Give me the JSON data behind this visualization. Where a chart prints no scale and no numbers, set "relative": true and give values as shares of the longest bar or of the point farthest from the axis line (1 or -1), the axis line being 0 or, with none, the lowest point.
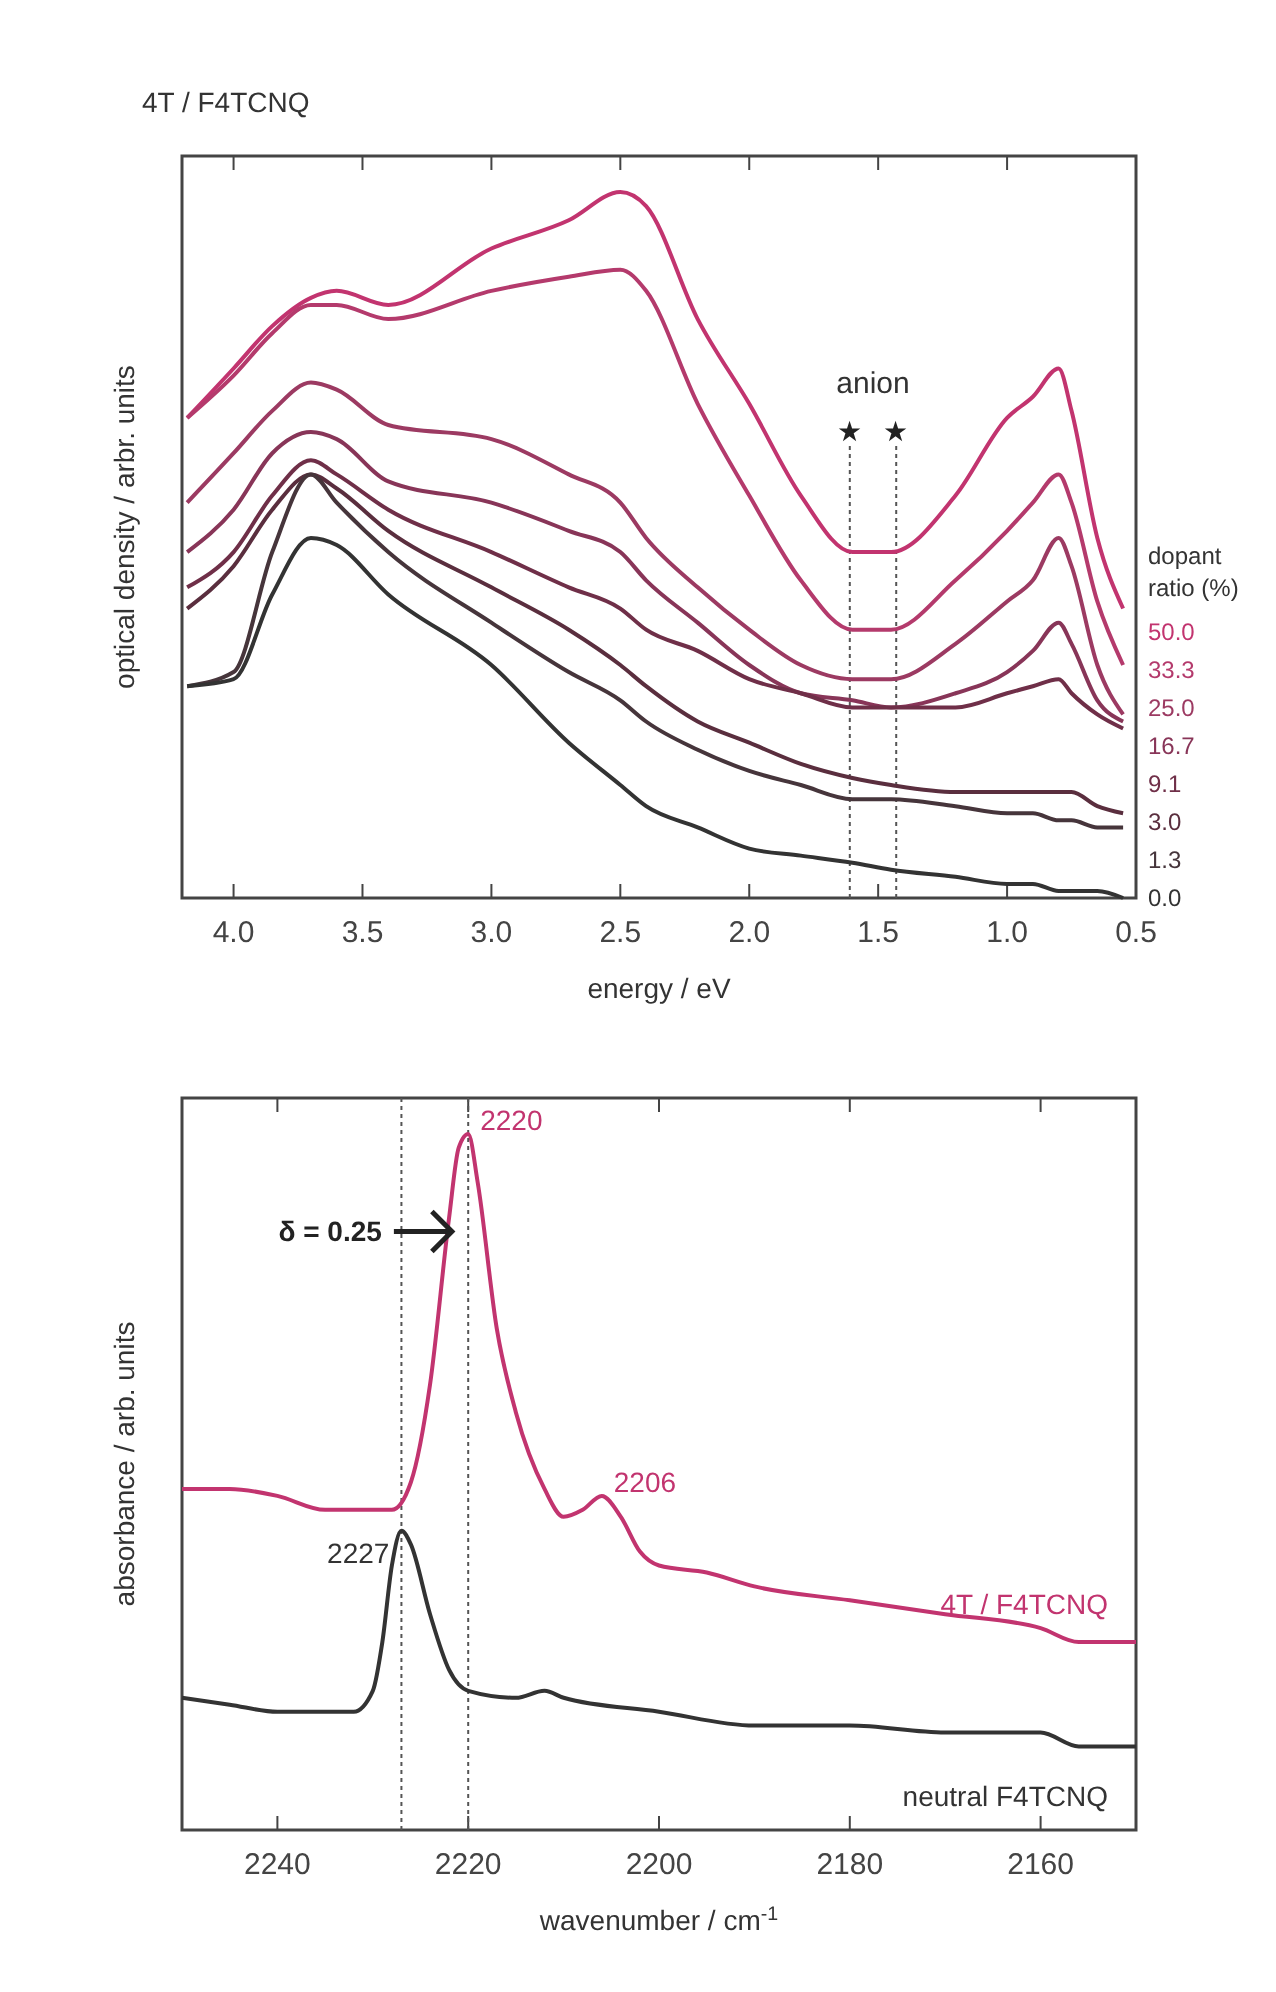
{
  "chart_data": [
    {
      "type": "line",
      "title": "4T / F4TCNQ",
      "xlabel": "energy / eV",
      "ylabel": "optical density / arbr. units",
      "legend_title": "dopant ratio (%)",
      "legend": "right",
      "relative": true,
      "x": [
        4.18,
        4.0,
        3.85,
        3.7,
        3.6,
        3.4,
        3.0,
        2.7,
        2.5,
        2.4,
        2.2,
        2.0,
        1.8,
        1.6,
        1.45,
        1.2,
        1.0,
        0.9,
        0.8,
        0.75,
        0.65,
        0.55
      ],
      "xlim": [
        4.2,
        0.5
      ],
      "xticks": [
        {
          "value": 4,
          "label": "4.0"
        },
        {
          "value": 3.5,
          "label": "3.5"
        },
        {
          "value": 3,
          "label": "3.0"
        },
        {
          "value": 2.5,
          "label": "2.5"
        },
        {
          "value": 2,
          "label": "2.0"
        },
        {
          "value": 1.5,
          "label": "1.5"
        },
        {
          "value": 1,
          "label": "1.0"
        },
        {
          "value": 0.5,
          "label": "0.5"
        }
      ],
      "series": [
        {
          "name": "50.0",
          "color": "#c2346f",
          "values": [
            0.68,
            0.75,
            0.81,
            0.85,
            0.86,
            0.84,
            0.92,
            0.96,
            1.0,
            0.98,
            0.82,
            0.7,
            0.57,
            0.49,
            0.49,
            0.57,
            0.68,
            0.71,
            0.75,
            0.69,
            0.51,
            0.41
          ]
        },
        {
          "name": "33.3",
          "color": "#b43a6c",
          "values": [
            0.68,
            0.74,
            0.8,
            0.84,
            0.84,
            0.82,
            0.86,
            0.88,
            0.89,
            0.86,
            0.7,
            0.57,
            0.45,
            0.38,
            0.38,
            0.45,
            0.52,
            0.56,
            0.6,
            0.56,
            0.42,
            0.33
          ]
        },
        {
          "name": "25.0",
          "color": "#9c3a62",
          "values": [
            0.56,
            0.63,
            0.69,
            0.73,
            0.72,
            0.67,
            0.65,
            0.6,
            0.56,
            0.51,
            0.44,
            0.38,
            0.33,
            0.31,
            0.31,
            0.36,
            0.42,
            0.45,
            0.51,
            0.47,
            0.33,
            0.26
          ]
        },
        {
          "name": "16.7",
          "color": "#883558",
          "values": [
            0.49,
            0.55,
            0.63,
            0.66,
            0.65,
            0.59,
            0.56,
            0.52,
            0.49,
            0.45,
            0.39,
            0.33,
            0.29,
            0.28,
            0.27,
            0.29,
            0.32,
            0.35,
            0.39,
            0.36,
            0.28,
            0.25
          ]
        },
        {
          "name": "9.1",
          "color": "#6f2f48",
          "values": [
            0.44,
            0.49,
            0.57,
            0.62,
            0.6,
            0.55,
            0.49,
            0.44,
            0.41,
            0.38,
            0.35,
            0.31,
            0.29,
            0.27,
            0.27,
            0.27,
            0.29,
            0.3,
            0.31,
            0.29,
            0.26,
            0.24
          ]
        },
        {
          "name": "3.0",
          "color": "#5a2e3e",
          "values": [
            0.41,
            0.47,
            0.55,
            0.6,
            0.58,
            0.52,
            0.44,
            0.38,
            0.33,
            0.3,
            0.25,
            0.22,
            0.19,
            0.17,
            0.16,
            0.15,
            0.15,
            0.15,
            0.15,
            0.15,
            0.13,
            0.12
          ]
        },
        {
          "name": "1.3",
          "color": "#46353b",
          "values": [
            0.3,
            0.32,
            0.49,
            0.6,
            0.56,
            0.49,
            0.39,
            0.32,
            0.28,
            0.25,
            0.21,
            0.18,
            0.16,
            0.14,
            0.14,
            0.13,
            0.12,
            0.12,
            0.11,
            0.11,
            0.1,
            0.1
          ]
        },
        {
          "name": "0.0",
          "color": "#333333",
          "values": [
            0.3,
            0.31,
            0.43,
            0.51,
            0.5,
            0.43,
            0.33,
            0.22,
            0.16,
            0.13,
            0.1,
            0.07,
            0.06,
            0.05,
            0.04,
            0.03,
            0.02,
            0.02,
            0.01,
            0.01,
            0.01,
            0.0
          ]
        }
      ],
      "ref_lines": [
        {
          "axis": "x",
          "value": 1.61,
          "label": "★",
          "line_style": "dotted"
        },
        {
          "axis": "x",
          "value": 1.43,
          "label": "★",
          "line_style": "dotted"
        }
      ],
      "annotations": [
        "anion"
      ]
    },
    {
      "type": "line",
      "xlabel": "wavenumber / cm$^{-1}$",
      "ylabel": "absorbance / arb. units",
      "relative": true,
      "xlim": [
        2250,
        2150
      ],
      "xticks": [
        2240,
        2220,
        2200,
        2180,
        2160
      ],
      "series": [
        {
          "name": "4T / F4TCNQ",
          "color": "#c2346f",
          "x": [
            2250,
            2245,
            2240,
            2235,
            2230,
            2228,
            2226,
            2224,
            2222,
            2221,
            2220,
            2219,
            2217,
            2215,
            2212,
            2210,
            2208,
            2206,
            2204,
            2202,
            2200,
            2195,
            2190,
            2180,
            2170,
            2160,
            2156,
            2150
          ],
          "values": [
            0.49,
            0.49,
            0.48,
            0.46,
            0.46,
            0.46,
            0.5,
            0.64,
            0.88,
            0.98,
            1.0,
            0.93,
            0.72,
            0.6,
            0.49,
            0.45,
            0.46,
            0.48,
            0.45,
            0.4,
            0.38,
            0.37,
            0.35,
            0.33,
            0.31,
            0.29,
            0.27,
            0.27
          ]
        },
        {
          "name": "neutral F4TCNQ",
          "color": "#333333",
          "x": [
            2250,
            2245,
            2240,
            2235,
            2232,
            2230,
            2229,
            2228,
            2227,
            2226,
            2224,
            2222,
            2220,
            2215,
            2212,
            2210,
            2200,
            2190,
            2180,
            2170,
            2160,
            2156,
            2150
          ],
          "values": [
            0.19,
            0.18,
            0.17,
            0.17,
            0.17,
            0.2,
            0.27,
            0.38,
            0.43,
            0.41,
            0.31,
            0.23,
            0.2,
            0.19,
            0.2,
            0.19,
            0.17,
            0.15,
            0.15,
            0.14,
            0.14,
            0.12,
            0.12
          ]
        }
      ],
      "ref_lines": [
        {
          "axis": "x",
          "value": 2227,
          "line_style": "dotted"
        },
        {
          "axis": "x",
          "value": 2220,
          "line_style": "dotted"
        }
      ],
      "annotations": [
        {
          "text": "2220",
          "x": 2220,
          "y": 1.0
        },
        {
          "text": "2206",
          "x": 2206,
          "y": 0.48
        },
        {
          "text": "2227",
          "x": 2227,
          "y": 0.43
        },
        {
          "text": "δ = 0.25",
          "x": 2221.5,
          "y": 0.86
        }
      ]
    }
  ]
}
